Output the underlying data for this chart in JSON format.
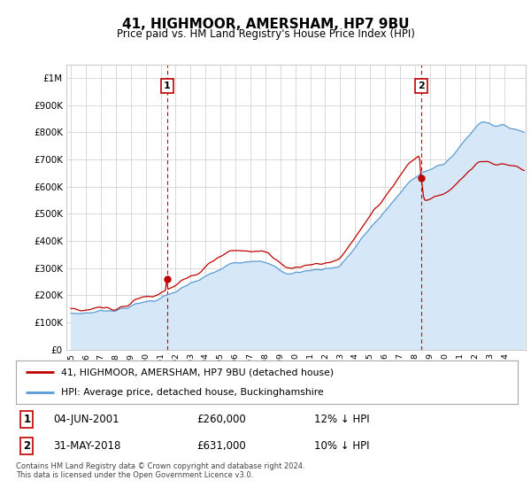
{
  "title": "41, HIGHMOOR, AMERSHAM, HP7 9BU",
  "subtitle": "Price paid vs. HM Land Registry's House Price Index (HPI)",
  "ytick_values": [
    0,
    100000,
    200000,
    300000,
    400000,
    500000,
    600000,
    700000,
    800000,
    900000,
    1000000
  ],
  "ylim": [
    0,
    1050000
  ],
  "xlim_start": 1994.7,
  "xlim_end": 2025.4,
  "xtick_years": [
    1995,
    1996,
    1997,
    1998,
    1999,
    2000,
    2001,
    2002,
    2003,
    2004,
    2005,
    2006,
    2007,
    2008,
    2009,
    2010,
    2011,
    2012,
    2013,
    2014,
    2015,
    2016,
    2017,
    2018,
    2019,
    2020,
    2021,
    2022,
    2023,
    2024
  ],
  "hpi_color": "#5b9bd5",
  "hpi_fill_color": "#d6e8f7",
  "price_color": "#c00000",
  "vline_color": "#c00000",
  "marker1_x": 2001.42,
  "marker1_y": 260000,
  "marker2_x": 2018.42,
  "marker2_y": 631000,
  "annotation1_label": "1",
  "annotation2_label": "2",
  "legend_label1": "41, HIGHMOOR, AMERSHAM, HP7 9BU (detached house)",
  "legend_label2": "HPI: Average price, detached house, Buckinghamshire",
  "table_row1": [
    "1",
    "04-JUN-2001",
    "£260,000",
    "12% ↓ HPI"
  ],
  "table_row2": [
    "2",
    "31-MAY-2018",
    "£631,000",
    "10% ↓ HPI"
  ],
  "footnote": "Contains HM Land Registry data © Crown copyright and database right 2024.\nThis data is licensed under the Open Government Licence v3.0.",
  "background_color": "#ffffff",
  "grid_color": "#cccccc"
}
